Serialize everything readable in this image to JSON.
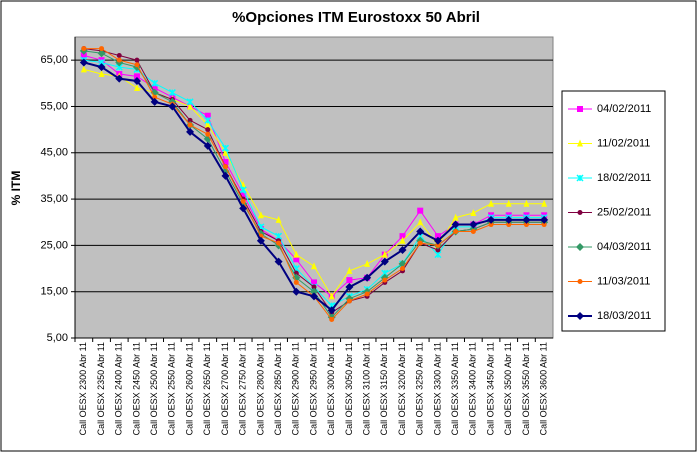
{
  "chart_data": {
    "type": "line",
    "title": "%Opciones ITM Eurostoxx 50 Abril",
    "y_label": "% ITM",
    "categories": [
      "Call OESX 2300 Abr 11",
      "Call OESX 2350 Abr 11",
      "Call OESX 2400 Abr 11",
      "Call OESX 2450 Abr 11",
      "Call OESX 2500 Abr 11",
      "Call OESX 2550 Abr 11",
      "Call OESX 2600 Abr 11",
      "Call OESX 2650 Abr 11",
      "Call OESX 2700 Abr 11",
      "Call OESX 2750 Abr 11",
      "Call OESX 2800 Abr 11",
      "Call OESX 2850 Abr 11",
      "Call OESX 2900 Abr 11",
      "Call OESX 2950 Abr 11",
      "Call OESX 3000 Abr 11",
      "Call OESX 3050 Abr 11",
      "Call OESX 3100 Abr 11",
      "Call OESX 3150 Abr 11",
      "Call OESX 3200 Abr 11",
      "Call OESX 3250 Abr 11",
      "Call OESX 3300 Abr 11",
      "Call OESX 3350 Abr 11",
      "Call OESX 3400 Abr 11",
      "Call OESX 3450 Abr 11",
      "Call OESX 3500 Abr 11",
      "Call OESX 3550 Abr 11",
      "Call OESX 3600 Abr 11"
    ],
    "series": [
      {
        "name": "04/02/2011",
        "color": "#ff00ff",
        "marker": "square",
        "values": [
          66,
          65,
          62,
          61.5,
          59,
          57,
          55,
          53,
          43,
          36,
          28.5,
          26,
          22,
          17,
          14,
          17.5,
          18,
          23,
          27,
          32.5,
          27,
          29.5,
          29.5,
          31.5,
          31.5,
          31.5,
          31.5
        ]
      },
      {
        "name": "11/02/2011",
        "color": "#ffff00",
        "marker": "triangle",
        "values": [
          63,
          62,
          61.5,
          59,
          58,
          56.5,
          55,
          51,
          45,
          38,
          31.5,
          30.5,
          23,
          20.5,
          14,
          19.5,
          21,
          23,
          26,
          30,
          25,
          31,
          32,
          34,
          34,
          34,
          34
        ]
      },
      {
        "name": "18/02/2011",
        "color": "#00ffff",
        "marker": "cross",
        "values": [
          65,
          64.5,
          63.5,
          63,
          60,
          58,
          56,
          52,
          46,
          37,
          29,
          27,
          20,
          16,
          12,
          14,
          15.5,
          19,
          21,
          27,
          23,
          29,
          29,
          31,
          31,
          31,
          31
        ]
      },
      {
        "name": "25/02/2011",
        "color": "#800040",
        "marker": "circle",
        "values": [
          67.5,
          67,
          66,
          65,
          58,
          56.5,
          52,
          50,
          42,
          35,
          28,
          26,
          19,
          16,
          10.5,
          13,
          14,
          17,
          19.5,
          25.5,
          24,
          28,
          28.5,
          30,
          30,
          30,
          30
        ]
      },
      {
        "name": "04/03/2011",
        "color": "#339966",
        "marker": "diamond",
        "values": [
          67,
          66.5,
          64.5,
          63.5,
          58,
          56,
          51,
          48,
          41,
          34,
          27.5,
          25,
          18,
          15,
          9.5,
          13.5,
          15,
          18,
          21,
          26,
          25,
          28,
          28.5,
          30,
          30,
          30,
          30
        ]
      },
      {
        "name": "11/03/2011",
        "color": "#ff6600",
        "marker": "circle",
        "values": [
          67.5,
          67.5,
          65,
          64,
          57,
          55.5,
          51,
          49,
          42,
          34.5,
          27,
          25.5,
          17,
          14,
          9,
          13,
          14.5,
          17.5,
          20,
          25.5,
          25,
          28,
          28,
          29.5,
          29.5,
          29.5,
          29.5
        ]
      },
      {
        "name": "18/03/2011",
        "color": "#000080",
        "marker": "diamond",
        "values": [
          64.5,
          63.5,
          61,
          60.5,
          56,
          55,
          49.5,
          46.5,
          40,
          33,
          26,
          21.5,
          15,
          14,
          11,
          16,
          18,
          21.5,
          24,
          28,
          26,
          29.5,
          29.5,
          30.5,
          30.5,
          30.5,
          30.5
        ]
      }
    ],
    "ylim": [
      5,
      70
    ],
    "yticks": [
      {
        "value": 5,
        "label": "5,00"
      },
      {
        "value": 15,
        "label": "15,00"
      },
      {
        "value": 25,
        "label": "25,00"
      },
      {
        "value": 35,
        "label": "35,00"
      },
      {
        "value": 45,
        "label": "45,00"
      },
      {
        "value": 55,
        "label": "55,00"
      },
      {
        "value": 65,
        "label": "65,00"
      }
    ],
    "grid": true,
    "plot_background": "#c0c0c0"
  }
}
